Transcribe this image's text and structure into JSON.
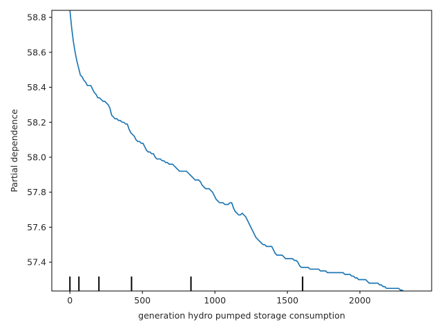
{
  "chart_data": {
    "type": "line",
    "title": "",
    "xlabel": "generation hydro pumped storage consumption",
    "ylabel": "Partial dependence",
    "xlim": [
      -125,
      2495
    ],
    "ylim": [
      57.235,
      58.84
    ],
    "x_ticks": [
      0,
      500,
      1000,
      1500,
      2000
    ],
    "y_ticks": [
      57.4,
      57.6,
      57.8,
      58.0,
      58.2,
      58.4,
      58.6,
      58.8
    ],
    "y_tick_labels": [
      "57.4",
      "57.6",
      "57.8",
      "58.0",
      "58.2",
      "58.4",
      "58.6",
      "58.8"
    ],
    "grid": false,
    "line_color": "#1f77b4",
    "rug_color": "#000000",
    "deciles": [
      0,
      62,
      200,
      425,
      835,
      1605
    ],
    "series": [
      {
        "x": [
          0,
          12,
          24,
          36,
          48,
          60,
          72,
          84,
          96,
          108,
          120,
          132,
          144,
          156,
          168,
          180,
          192,
          204,
          216,
          228,
          240,
          252,
          264,
          276,
          288,
          300,
          312,
          324,
          336,
          348,
          360,
          372,
          384,
          396,
          408,
          420,
          432,
          444,
          456,
          468,
          480,
          492,
          504,
          516,
          528,
          540,
          552,
          564,
          576,
          588,
          600,
          612,
          624,
          636,
          648,
          660,
          672,
          684,
          696,
          708,
          720,
          732,
          744,
          756,
          768,
          780,
          792,
          804,
          816,
          828,
          840,
          852,
          864,
          876,
          888,
          900,
          912,
          924,
          936,
          948,
          960,
          972,
          984,
          996,
          1008,
          1020,
          1032,
          1044,
          1056,
          1068,
          1080,
          1092,
          1104,
          1116,
          1128,
          1140,
          1152,
          1164,
          1176,
          1188,
          1200,
          1212,
          1224,
          1236,
          1248,
          1260,
          1272,
          1284,
          1296,
          1308,
          1320,
          1332,
          1344,
          1356,
          1368,
          1380,
          1392,
          1404,
          1416,
          1428,
          1440,
          1452,
          1464,
          1476,
          1488,
          1500,
          1512,
          1524,
          1536,
          1548,
          1560,
          1572,
          1584,
          1596,
          1608,
          1620,
          1632,
          1644,
          1656,
          1668,
          1680,
          1692,
          1704,
          1716,
          1728,
          1740,
          1752,
          1764,
          1776,
          1788,
          1800,
          1812,
          1824,
          1836,
          1848,
          1860,
          1872,
          1884,
          1896,
          1908,
          1920,
          1932,
          1944,
          1956,
          1968,
          1980,
          1992,
          2004,
          2016,
          2028,
          2040,
          2052,
          2064,
          2076,
          2088,
          2100,
          2112,
          2124,
          2136,
          2148,
          2160,
          2172,
          2184,
          2196,
          2208,
          2220,
          2232,
          2244,
          2256,
          2268,
          2280,
          2292,
          2304,
          2316,
          2328,
          2340,
          2352,
          2364,
          2376,
          2388,
          2400
        ],
        "y": [
          58.84,
          58.74,
          58.66,
          58.6,
          58.55,
          58.51,
          58.47,
          58.46,
          58.44,
          58.43,
          58.41,
          58.41,
          58.41,
          58.39,
          58.37,
          58.36,
          58.34,
          58.34,
          58.33,
          58.32,
          58.32,
          58.31,
          58.3,
          58.28,
          58.24,
          58.23,
          58.22,
          58.22,
          58.21,
          58.21,
          58.2,
          58.2,
          58.19,
          58.19,
          58.16,
          58.14,
          58.13,
          58.12,
          58.1,
          58.09,
          58.09,
          58.08,
          58.08,
          58.06,
          58.04,
          58.03,
          58.03,
          58.02,
          58.02,
          58.0,
          57.99,
          57.99,
          57.99,
          57.98,
          57.98,
          57.97,
          57.97,
          57.96,
          57.96,
          57.96,
          57.95,
          57.94,
          57.93,
          57.92,
          57.92,
          57.92,
          57.92,
          57.92,
          57.91,
          57.9,
          57.89,
          57.88,
          57.87,
          57.87,
          57.87,
          57.86,
          57.84,
          57.83,
          57.82,
          57.82,
          57.82,
          57.81,
          57.8,
          57.78,
          57.76,
          57.75,
          57.74,
          57.74,
          57.74,
          57.73,
          57.73,
          57.73,
          57.74,
          57.74,
          57.71,
          57.69,
          57.68,
          57.67,
          57.67,
          57.68,
          57.67,
          57.66,
          57.64,
          57.62,
          57.6,
          57.58,
          57.56,
          57.54,
          57.53,
          57.52,
          57.51,
          57.5,
          57.5,
          57.49,
          57.49,
          57.49,
          57.49,
          57.47,
          57.45,
          57.44,
          57.44,
          57.44,
          57.44,
          57.43,
          57.42,
          57.42,
          57.42,
          57.42,
          57.42,
          57.41,
          57.41,
          57.4,
          57.38,
          57.37,
          57.37,
          57.37,
          57.37,
          57.37,
          57.36,
          57.36,
          57.36,
          57.36,
          57.36,
          57.36,
          57.35,
          57.35,
          57.35,
          57.35,
          57.34,
          57.34,
          57.34,
          57.34,
          57.34,
          57.34,
          57.34,
          57.34,
          57.34,
          57.34,
          57.33,
          57.33,
          57.33,
          57.33,
          57.32,
          57.32,
          57.31,
          57.31,
          57.3,
          57.3,
          57.3,
          57.3,
          57.3,
          57.29,
          57.28,
          57.28,
          57.28,
          57.28,
          57.28,
          57.28,
          57.27,
          57.27,
          57.26,
          57.26,
          57.25,
          57.25,
          57.25,
          57.25,
          57.25,
          57.25,
          57.25,
          57.25,
          57.24,
          57.24,
          57.23,
          57.23,
          57.23,
          57.23,
          57.23,
          57.23,
          57.23,
          57.23,
          57.23
        ]
      }
    ]
  }
}
